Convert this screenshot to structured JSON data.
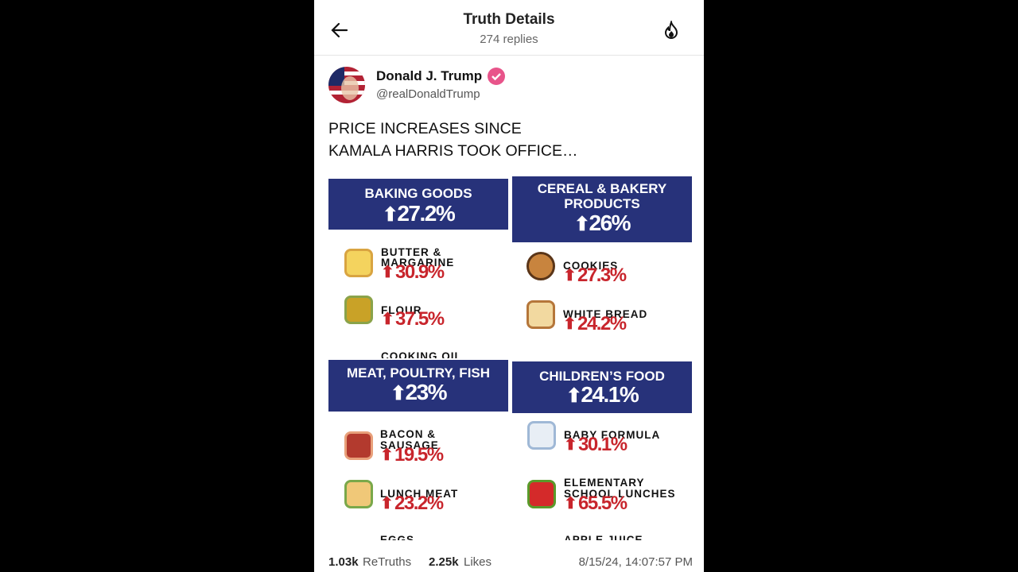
{
  "header": {
    "title": "Truth Details",
    "replies": "274 replies"
  },
  "post": {
    "author": {
      "name": "Donald J. Trump",
      "handle": "@realDonaldTrump"
    },
    "text": [
      "PRICE INCREASES SINCE",
      "KAMALA HARRIS TOOK OFFICE…"
    ],
    "image": {
      "panels": [
        {
          "title": [
            "BAKING GOODS"
          ],
          "change": "27.2%",
          "items": [
            {
              "label": [
                "BUTTER &",
                "MARGARINE"
              ],
              "change": "30.9%"
            },
            {
              "label": [
                "FLOUR"
              ],
              "change": "37.5%"
            },
            {
              "label": [
                "COOKING OIL"
              ]
            }
          ]
        },
        {
          "title": [
            "CEREAL & BAKERY",
            "PRODUCTS"
          ],
          "change": "26%",
          "items": [
            {
              "label": [
                "COOKIES"
              ],
              "change": "27.3%"
            },
            {
              "label": [
                "WHITE BREAD"
              ],
              "change": "24.2%"
            }
          ]
        },
        {
          "title": [
            "MEAT, POULTRY, FISH"
          ],
          "change": "23%",
          "items": [
            {
              "label": [
                "BACON &",
                "SAUSAGE"
              ],
              "change": "19.5%"
            },
            {
              "label": [
                "LUNCH MEAT"
              ],
              "change": "23.2%"
            },
            {
              "label": [
                "EGGS"
              ]
            }
          ]
        },
        {
          "title": [
            "CHILDREN’S FOOD"
          ],
          "change": "24.1%",
          "items": [
            {
              "label": [
                "BABY FORMULA"
              ],
              "change": "30.1%"
            },
            {
              "label": [
                "ELEMENTARY",
                "SCHOOL LUNCHES"
              ],
              "change": "65.5%"
            },
            {
              "label": [
                "APPLE JUICE"
              ]
            }
          ]
        }
      ]
    }
  },
  "stats": {
    "retruths_count": "1.03k",
    "retruths_label": "ReTruths",
    "likes_count": "2.25k",
    "likes_label": "Likes",
    "timestamp": "8/15/24, 14:07:57 PM"
  }
}
